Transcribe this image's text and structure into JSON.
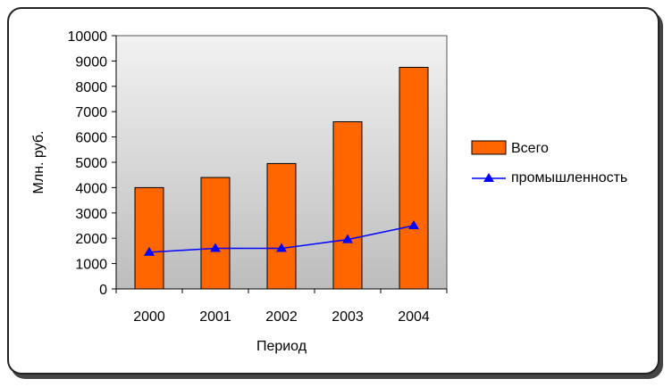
{
  "chart_data": {
    "type": "bar",
    "categories": [
      "2000",
      "2001",
      "2002",
      "2003",
      "2004"
    ],
    "series": [
      {
        "name": "Всего",
        "kind": "bar",
        "color": "#ff6600",
        "values": [
          4000,
          4400,
          4950,
          6600,
          8750
        ]
      },
      {
        "name": "промышленность",
        "kind": "line",
        "color": "#0000ff",
        "values": [
          1450,
          1600,
          1600,
          1950,
          2500
        ]
      }
    ],
    "xlabel": "Период",
    "ylabel": "Млн. руб.",
    "ylim": [
      0,
      10000
    ],
    "yticks": [
      0,
      1000,
      2000,
      3000,
      4000,
      5000,
      6000,
      7000,
      8000,
      9000,
      10000
    ],
    "legend_position": "right",
    "plot_background": "gradient-gray"
  }
}
